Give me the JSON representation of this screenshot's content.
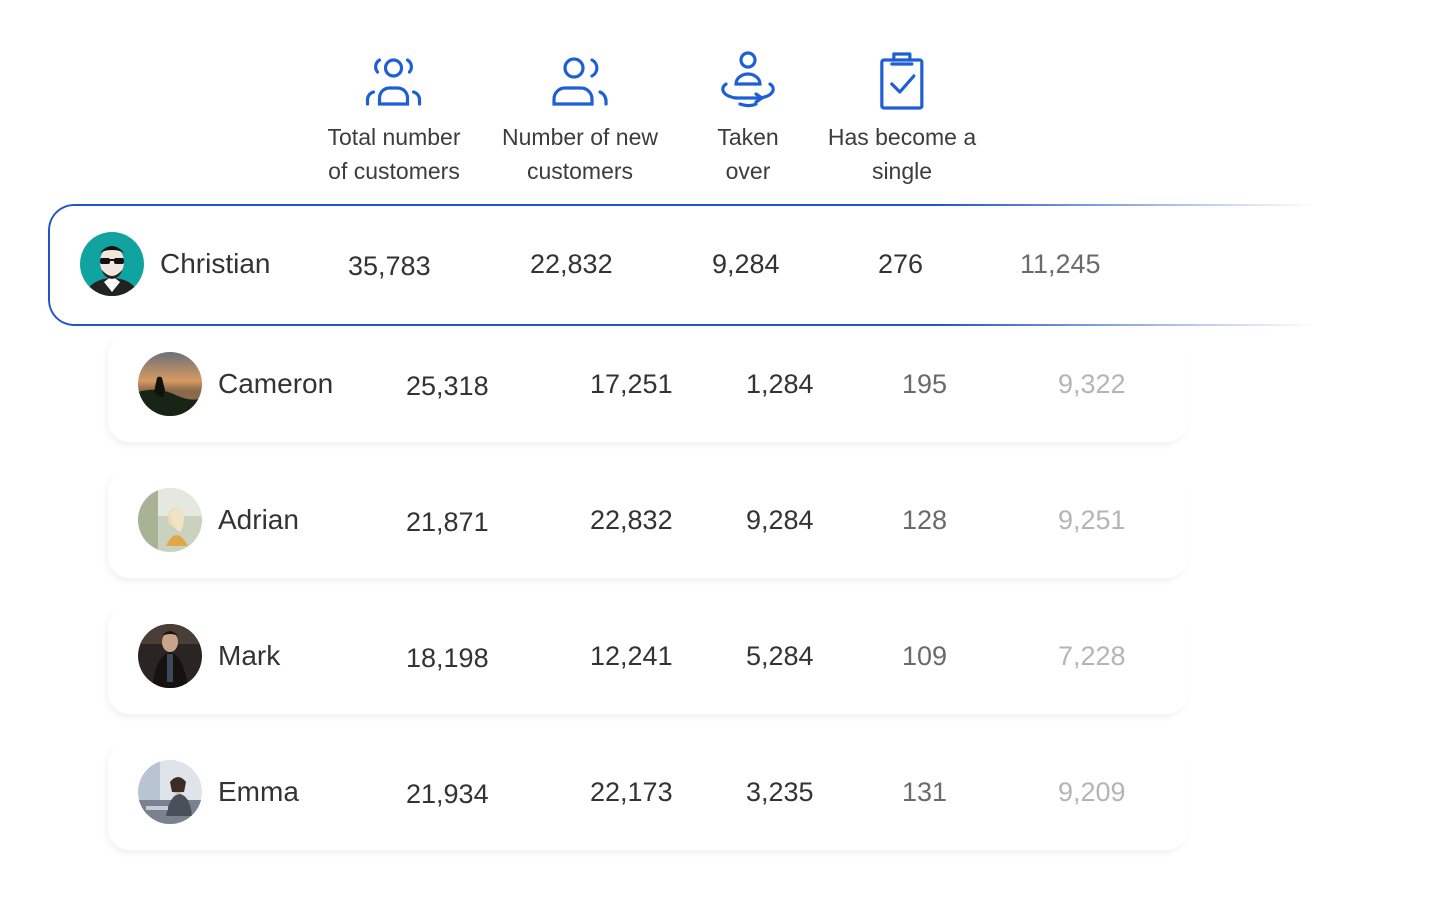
{
  "headers": [
    {
      "icon": "customers-group-icon",
      "label": "Total number\nof customers"
    },
    {
      "icon": "new-customers-icon",
      "label": "Number of new\ncustomers"
    },
    {
      "icon": "taken-over-icon",
      "label": "Taken\nover"
    },
    {
      "icon": "clipboard-check-icon",
      "label": "Has become a\nsingle"
    }
  ],
  "rows": [
    {
      "name": "Christian",
      "total": "35,783",
      "new": "22,832",
      "taken": "9,284",
      "single": "276",
      "extra": "11,245",
      "active": true
    },
    {
      "name": "Cameron",
      "total": "25,318",
      "new": "17,251",
      "taken": "1,284",
      "single": "195",
      "extra": "9,322"
    },
    {
      "name": "Adrian",
      "total": "21,871",
      "new": "22,832",
      "taken": "9,284",
      "single": "128",
      "extra": "9,251"
    },
    {
      "name": "Mark",
      "total": "18,198",
      "new": "12,241",
      "taken": "5,284",
      "single": "109",
      "extra": "7,228"
    },
    {
      "name": "Emma",
      "total": "21,934",
      "new": "22,173",
      "taken": "3,235",
      "single": "131",
      "extra": "9,209"
    }
  ],
  "colors": {
    "accent": "#2255c8",
    "icon": "#1f5fd6"
  }
}
